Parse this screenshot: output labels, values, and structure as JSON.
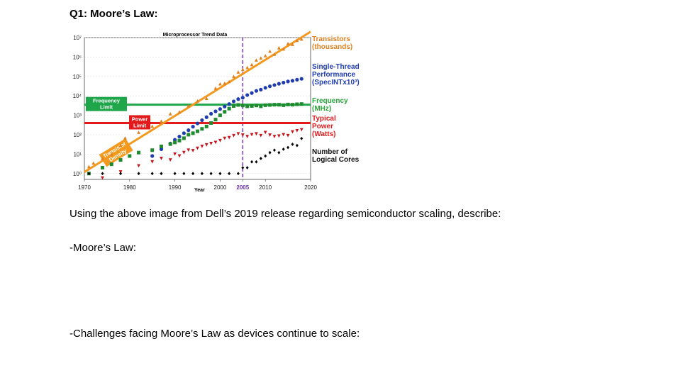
{
  "document": {
    "heading": "Q1: Moore’s Law:",
    "paragraph_intro": "Using the above image from Dell’s 2019 release regarding semiconductor scaling, describe:",
    "prompt_1": "-Moore’s Law:",
    "prompt_2": "-Challenges facing Moore’s Law as devices continue to scale:"
  },
  "chart_data": {
    "type": "scatter",
    "title": "Microprocessor Trend Data",
    "xlabel": "Year",
    "ylabel": "",
    "y_scale": "log",
    "xlim": [
      1970,
      2020
    ],
    "ylim": [
      0.5,
      10000000
    ],
    "x_ticks": [
      "1970",
      "1980",
      "1990",
      "2000",
      "2005",
      "2010",
      "2020"
    ],
    "y_ticks": [
      "10⁰",
      "10¹",
      "10²",
      "10³",
      "10⁴",
      "10⁵",
      "10⁶",
      "10⁷"
    ],
    "highlight_year": "2005",
    "reference_lines": [
      {
        "label": [
          "Frequency",
          "Limit"
        ],
        "y": 3500,
        "color": "#1fa64a"
      },
      {
        "label": [
          "Power",
          "Limit"
        ],
        "y": 400,
        "color": "#e31a1c"
      },
      {
        "label": [
          "Transistor",
          "Density"
        ],
        "color": "#f39a1e",
        "from": [
          1970,
          1.2
        ],
        "to": [
          2020,
          20000000
        ]
      }
    ],
    "series": [
      {
        "name": "Transistors (thousands)",
        "legend": [
          "Transistors",
          "(thousands)"
        ],
        "marker": "triangle-up",
        "color": "#e0801f",
        "points": [
          [
            1971,
            2.3
          ],
          [
            1972,
            3.5
          ],
          [
            1974,
            6
          ],
          [
            1976,
            10
          ],
          [
            1978,
            29
          ],
          [
            1979,
            68
          ],
          [
            1982,
            134
          ],
          [
            1985,
            275
          ],
          [
            1987,
            500
          ],
          [
            1989,
            1200
          ],
          [
            1991,
            1500
          ],
          [
            1993,
            3100
          ],
          [
            1995,
            5500
          ],
          [
            1997,
            7500
          ],
          [
            1999,
            25000
          ],
          [
            2000,
            42000
          ],
          [
            2001,
            45000
          ],
          [
            2002,
            55000
          ],
          [
            2003,
            100000
          ],
          [
            2004,
            170000
          ],
          [
            2005,
            230000
          ],
          [
            2006,
            290000
          ],
          [
            2007,
            410000
          ],
          [
            2008,
            700000
          ],
          [
            2009,
            900000
          ],
          [
            2010,
            1170000
          ],
          [
            2011,
            2000000
          ],
          [
            2012,
            1400000
          ],
          [
            2013,
            3000000
          ],
          [
            2014,
            2600000
          ],
          [
            2015,
            5000000
          ],
          [
            2016,
            4500000
          ],
          [
            2017,
            7200000
          ],
          [
            2018,
            10000000
          ]
        ]
      },
      {
        "name": "Single-Thread Performance (SpecINTx10³)",
        "legend": [
          "Single-Thread",
          "Performance",
          "(SpecINTx10³)"
        ],
        "marker": "circle",
        "color": "#1f3cb0",
        "points": [
          [
            1985,
            8
          ],
          [
            1987,
            18
          ],
          [
            1989,
            35
          ],
          [
            1990,
            55
          ],
          [
            1991,
            80
          ],
          [
            1992,
            120
          ],
          [
            1993,
            170
          ],
          [
            1994,
            260
          ],
          [
            1995,
            380
          ],
          [
            1996,
            560
          ],
          [
            1997,
            800
          ],
          [
            1998,
            1200
          ],
          [
            1999,
            1600
          ],
          [
            2000,
            2100
          ],
          [
            2001,
            2800
          ],
          [
            2002,
            3800
          ],
          [
            2003,
            5200
          ],
          [
            2004,
            6800
          ],
          [
            2005,
            8000
          ],
          [
            2006,
            11000
          ],
          [
            2007,
            14000
          ],
          [
            2008,
            18000
          ],
          [
            2009,
            21000
          ],
          [
            2010,
            26000
          ],
          [
            2011,
            31000
          ],
          [
            2012,
            36000
          ],
          [
            2013,
            42000
          ],
          [
            2014,
            48000
          ],
          [
            2015,
            55000
          ],
          [
            2016,
            60000
          ],
          [
            2017,
            68000
          ],
          [
            2018,
            75000
          ]
        ]
      },
      {
        "name": "Frequency (MHz)",
        "legend": [
          "Frequency",
          "(MHz)"
        ],
        "marker": "square",
        "color": "#1f8a2e",
        "points": [
          [
            1971,
            1
          ],
          [
            1974,
            2
          ],
          [
            1976,
            3
          ],
          [
            1978,
            5
          ],
          [
            1980,
            8
          ],
          [
            1982,
            12
          ],
          [
            1985,
            16
          ],
          [
            1987,
            25
          ],
          [
            1989,
            33
          ],
          [
            1990,
            40
          ],
          [
            1991,
            50
          ],
          [
            1992,
            66
          ],
          [
            1993,
            100
          ],
          [
            1994,
            120
          ],
          [
            1995,
            150
          ],
          [
            1996,
            200
          ],
          [
            1997,
            266
          ],
          [
            1998,
            400
          ],
          [
            1999,
            600
          ],
          [
            2000,
            1000
          ],
          [
            2001,
            1500
          ],
          [
            2002,
            2200
          ],
          [
            2003,
            3000
          ],
          [
            2004,
            3400
          ],
          [
            2005,
            3200
          ],
          [
            2006,
            2900
          ],
          [
            2007,
            3000
          ],
          [
            2008,
            3200
          ],
          [
            2009,
            2900
          ],
          [
            2010,
            3300
          ],
          [
            2011,
            3400
          ],
          [
            2012,
            3500
          ],
          [
            2013,
            3500
          ],
          [
            2014,
            3300
          ],
          [
            2015,
            3600
          ],
          [
            2016,
            3500
          ],
          [
            2017,
            3700
          ],
          [
            2018,
            3800
          ]
        ]
      },
      {
        "name": "Typical Power (Watts)",
        "legend": [
          "Typical",
          "Power",
          "(Watts)"
        ],
        "marker": "triangle-down",
        "color": "#c4161c",
        "points": [
          [
            1974,
            0.5
          ],
          [
            1978,
            1.2
          ],
          [
            1982,
            2.5
          ],
          [
            1985,
            4
          ],
          [
            1987,
            6
          ],
          [
            1989,
            5
          ],
          [
            1990,
            10
          ],
          [
            1991,
            8
          ],
          [
            1992,
            12
          ],
          [
            1993,
            16
          ],
          [
            1994,
            15
          ],
          [
            1995,
            20
          ],
          [
            1996,
            25
          ],
          [
            1997,
            30
          ],
          [
            1998,
            35
          ],
          [
            1999,
            40
          ],
          [
            2000,
            50
          ],
          [
            2001,
            65
          ],
          [
            2002,
            70
          ],
          [
            2003,
            90
          ],
          [
            2004,
            110
          ],
          [
            2005,
            95
          ],
          [
            2006,
            80
          ],
          [
            2007,
            100
          ],
          [
            2008,
            110
          ],
          [
            2009,
            90
          ],
          [
            2010,
            130
          ],
          [
            2011,
            95
          ],
          [
            2012,
            80
          ],
          [
            2013,
            85
          ],
          [
            2014,
            100
          ],
          [
            2015,
            90
          ],
          [
            2016,
            140
          ],
          [
            2017,
            160
          ],
          [
            2018,
            180
          ]
        ]
      },
      {
        "name": "Number of Logical Cores",
        "legend": [
          "Number of",
          "Logical Cores"
        ],
        "marker": "diamond",
        "color": "#000000",
        "points": [
          [
            1971,
            1
          ],
          [
            1974,
            1
          ],
          [
            1978,
            1
          ],
          [
            1982,
            1
          ],
          [
            1985,
            1
          ],
          [
            1987,
            1
          ],
          [
            1990,
            1
          ],
          [
            1992,
            1
          ],
          [
            1994,
            1
          ],
          [
            1996,
            1
          ],
          [
            1998,
            1
          ],
          [
            2000,
            1
          ],
          [
            2002,
            1
          ],
          [
            2004,
            1
          ],
          [
            2005,
            2
          ],
          [
            2006,
            2
          ],
          [
            2007,
            4
          ],
          [
            2008,
            4
          ],
          [
            2009,
            6
          ],
          [
            2010,
            8
          ],
          [
            2011,
            12
          ],
          [
            2012,
            16
          ],
          [
            2013,
            12
          ],
          [
            2014,
            18
          ],
          [
            2015,
            22
          ],
          [
            2016,
            32
          ],
          [
            2017,
            28
          ],
          [
            2018,
            64
          ]
        ]
      }
    ]
  }
}
